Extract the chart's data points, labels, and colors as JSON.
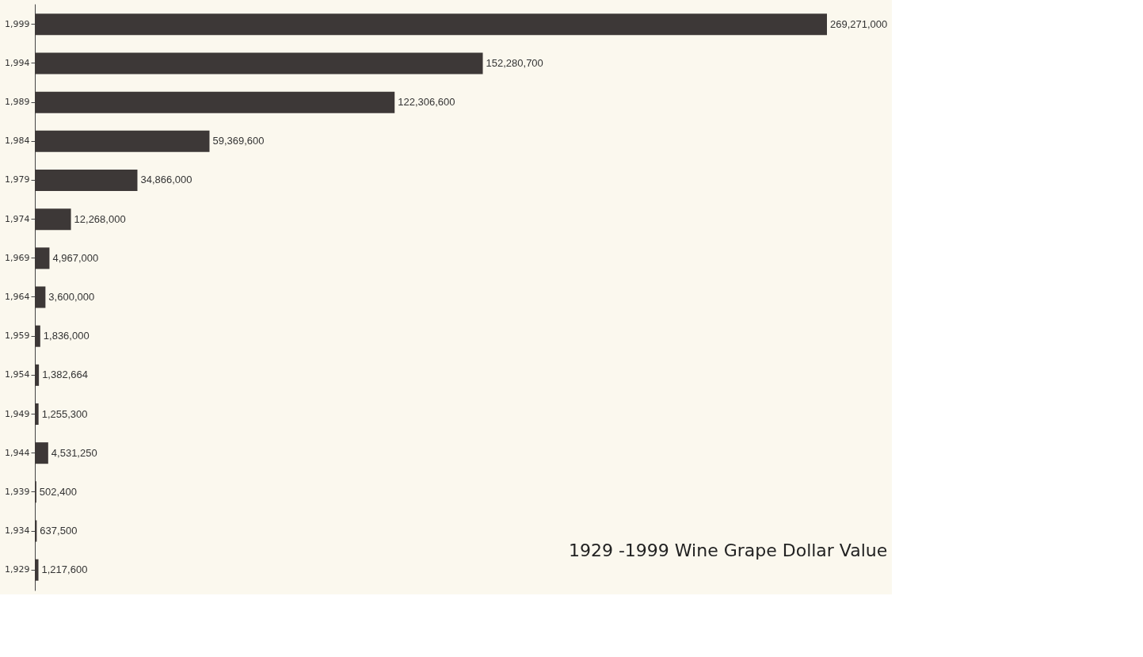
{
  "chart_data": {
    "type": "bar",
    "orientation": "horizontal",
    "title": "1929 -1999  Wine Grape Dollar Value",
    "categories": [
      "1,999",
      "1,994",
      "1,989",
      "1,984",
      "1,979",
      "1,974",
      "1,969",
      "1,964",
      "1,959",
      "1,954",
      "1,949",
      "1,944",
      "1,939",
      "1,934",
      "1,929"
    ],
    "values": [
      269271000,
      152280700,
      122306600,
      59369600,
      34866000,
      12268000,
      4967000,
      3600000,
      1836000,
      1382664,
      1255300,
      4531250,
      502400,
      637500,
      1217600
    ],
    "value_labels": [
      "269,271,000",
      "152,280,700",
      "122,306,600",
      "59,369,600",
      "34,866,000",
      "12,268,000",
      "4,967,000",
      "3,600,000",
      "1,836,000",
      "1,382,664",
      "1,255,300",
      "4,531,250",
      "502,400",
      "637,500",
      "1,217,600"
    ],
    "color": "#3d3837",
    "grid": false,
    "tick_labels": "y"
  }
}
